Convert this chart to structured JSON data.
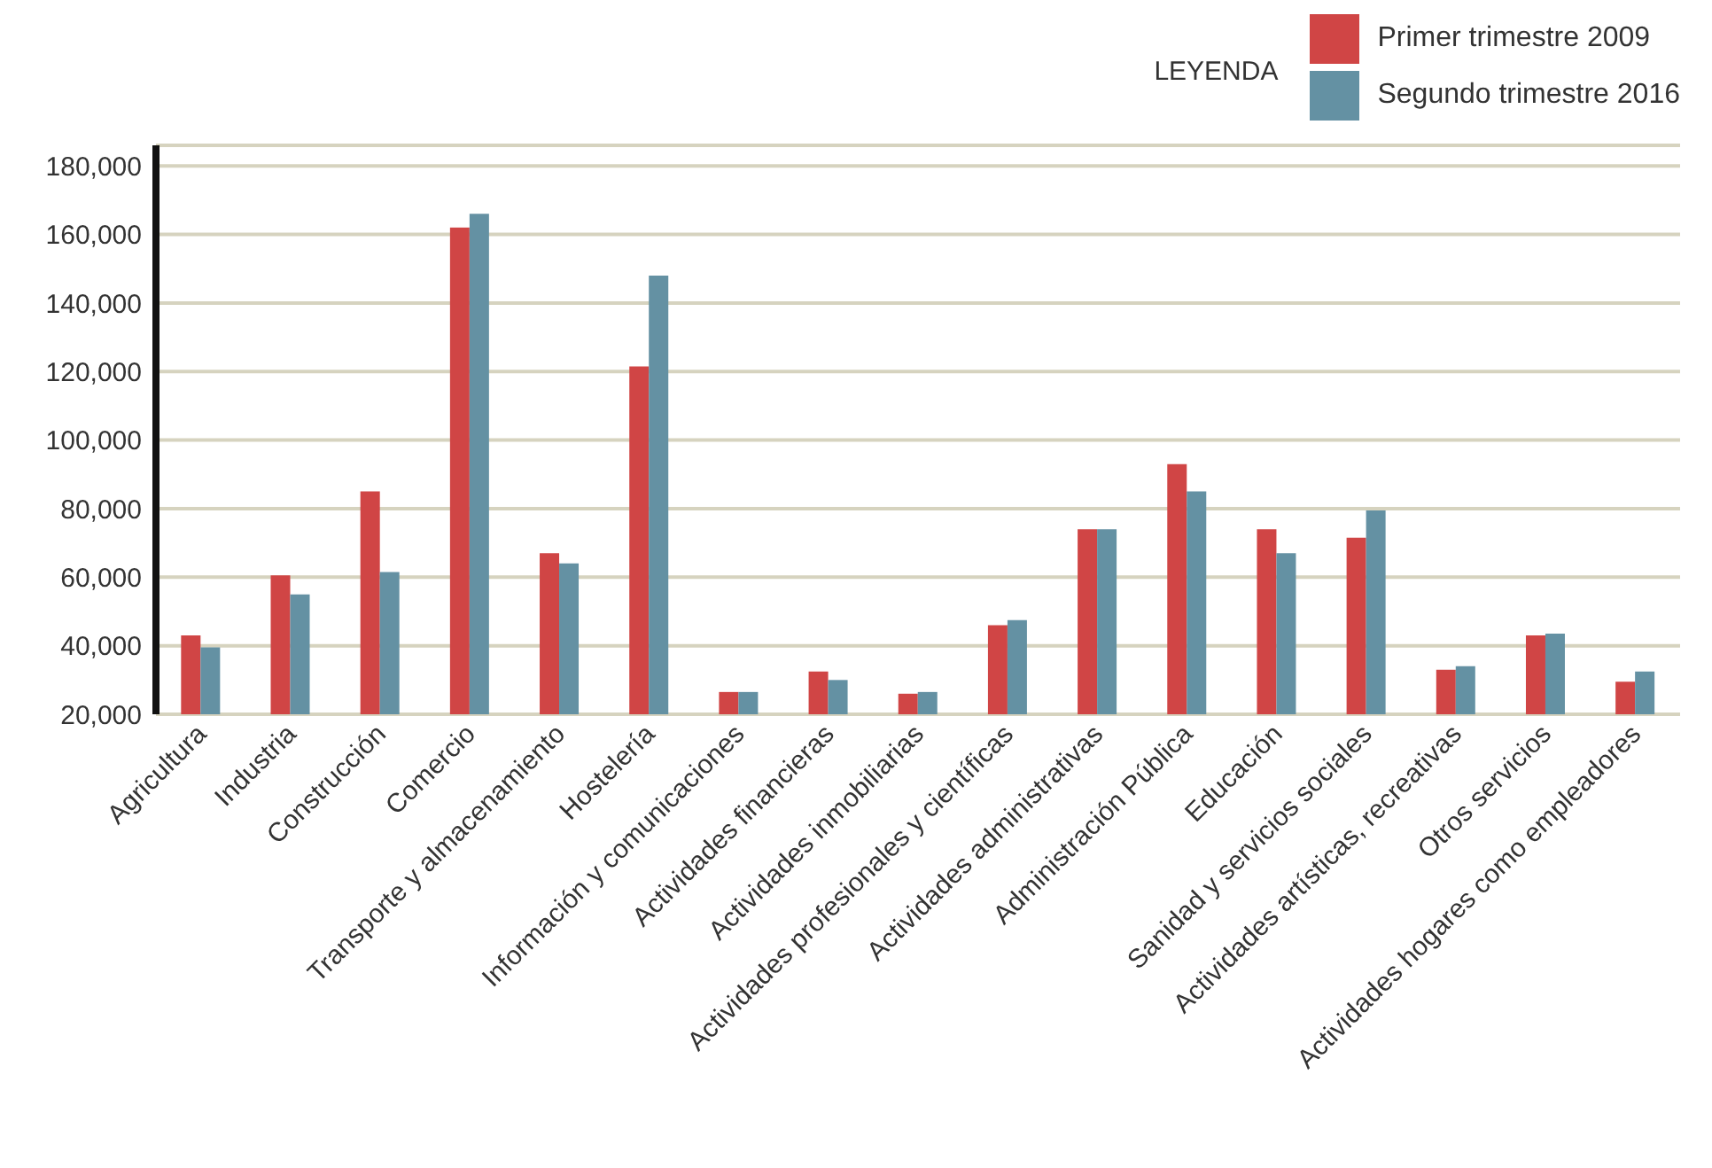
{
  "chart_data": {
    "type": "bar",
    "legend_title": "LEYENDA",
    "legend": "top right",
    "grid": "y",
    "categories": [
      "Agricultura",
      "Industria",
      "Construcción",
      "Comercio",
      "Transporte y almacenamiento",
      "Hostelería",
      "Información y comunicaciones",
      "Actividades financieras",
      "Actividades inmobiliarias",
      "Actividades profesionales y científicas",
      "Actividades administrativas",
      "Administración Pública",
      "Educación",
      "Sanidad y servicios sociales",
      "Actividades artísticas, recreativas",
      "Otros servicios",
      "Actividades hogares como empleadores"
    ],
    "series": [
      {
        "name": "Primer trimestre 2009",
        "color": "#d04545",
        "values": [
          43000,
          60500,
          85000,
          162000,
          67000,
          121500,
          26500,
          32500,
          26000,
          46000,
          74000,
          93000,
          74000,
          71500,
          33000,
          43000,
          29500
        ]
      },
      {
        "name": "Segundo trimestre 2016",
        "color": "#6491a3",
        "values": [
          39500,
          55000,
          61500,
          166000,
          64000,
          148000,
          26500,
          30000,
          26500,
          47500,
          74000,
          85000,
          67000,
          79500,
          34000,
          43500,
          32500
        ]
      }
    ],
    "ylim": [
      20000,
      186000
    ],
    "yticks": [
      {
        "value": 20000,
        "label": "20,000"
      },
      {
        "value": 40000,
        "label": "40,000"
      },
      {
        "value": 60000,
        "label": "60,000"
      },
      {
        "value": 80000,
        "label": "80,000"
      },
      {
        "value": 100000,
        "label": "100,000"
      },
      {
        "value": 120000,
        "label": "120,000"
      },
      {
        "value": 140000,
        "label": "140,000"
      },
      {
        "value": 160000,
        "label": "160,000"
      },
      {
        "value": 180000,
        "label": "180,000"
      }
    ]
  }
}
